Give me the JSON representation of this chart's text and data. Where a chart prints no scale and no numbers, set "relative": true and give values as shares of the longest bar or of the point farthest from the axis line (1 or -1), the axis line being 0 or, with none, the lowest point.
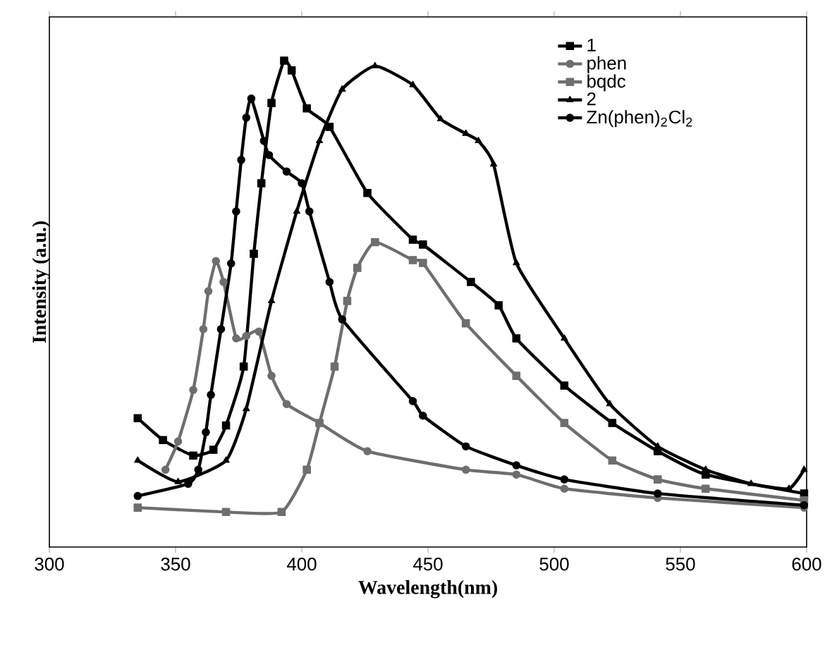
{
  "chart_data": {
    "type": "line",
    "xlabel": "Wavelength(nm)",
    "ylabel": "Intensity (a.u.)",
    "relative": true,
    "xlim": [
      300,
      600
    ],
    "xticks": [
      300,
      350,
      400,
      450,
      500,
      550,
      600
    ],
    "legend": "top right",
    "line_style": "solid",
    "series": [
      {
        "name": "1",
        "color": "#000000",
        "marker": "square",
        "x": [
          335,
          345,
          357,
          365,
          370,
          377,
          381,
          384,
          388,
          393,
          396,
          402,
          411,
          426,
          444,
          448,
          467,
          478,
          485,
          504,
          523,
          541,
          560,
          599
        ],
        "values": [
          0.265,
          0.22,
          0.188,
          0.2,
          0.25,
          0.371,
          0.603,
          0.748,
          0.913,
          1,
          0.98,
          0.902,
          0.864,
          0.728,
          0.632,
          0.622,
          0.545,
          0.497,
          0.429,
          0.332,
          0.255,
          0.197,
          0.149,
          0.11
        ]
      },
      {
        "name": "phen",
        "color": "#6e6e6e",
        "marker": "circle",
        "x": [
          346,
          351,
          357,
          361,
          363,
          366,
          369,
          374,
          378,
          383,
          388,
          394,
          407,
          426,
          465,
          485,
          504,
          541,
          599
        ],
        "values": [
          0.159,
          0.217,
          0.323,
          0.448,
          0.526,
          0.588,
          0.545,
          0.429,
          0.434,
          0.443,
          0.352,
          0.294,
          0.255,
          0.197,
          0.159,
          0.149,
          0.12,
          0.101,
          0.081
        ]
      },
      {
        "name": "bqdc",
        "color": "#6e6e6e",
        "marker": "square",
        "x": [
          335,
          370,
          392,
          402,
          407,
          413,
          418,
          422,
          429,
          444,
          448,
          465,
          485,
          504,
          523,
          541,
          560,
          599
        ],
        "values": [
          0.081,
          0.072,
          0.072,
          0.159,
          0.255,
          0.371,
          0.506,
          0.574,
          0.627,
          0.59,
          0.584,
          0.46,
          0.352,
          0.255,
          0.178,
          0.139,
          0.12,
          0.096
        ]
      },
      {
        "name": "2",
        "color": "#000000",
        "marker": "triangle",
        "x": [
          335,
          351,
          370,
          378,
          388,
          398,
          407,
          416,
          429,
          444,
          455,
          465,
          470,
          476,
          485,
          504,
          522,
          541,
          560,
          578,
          593,
          599
        ],
        "values": [
          0.178,
          0.134,
          0.178,
          0.284,
          0.506,
          0.69,
          0.835,
          0.941,
          0.989,
          0.95,
          0.88,
          0.85,
          0.835,
          0.787,
          0.584,
          0.429,
          0.294,
          0.207,
          0.159,
          0.13,
          0.12,
          0.159
        ]
      },
      {
        "name": "Zn(phen)$_{2}$Cl$_{2}$",
        "color": "#000000",
        "marker": "circle",
        "x": [
          335,
          355,
          359,
          362,
          364,
          368,
          372,
          374,
          376,
          378,
          380,
          385,
          387,
          394,
          400,
          403,
          411,
          416,
          444,
          448,
          465,
          485,
          504,
          541,
          599
        ],
        "values": [
          0.105,
          0.13,
          0.159,
          0.236,
          0.313,
          0.448,
          0.583,
          0.69,
          0.796,
          0.883,
          0.922,
          0.835,
          0.806,
          0.772,
          0.748,
          0.69,
          0.545,
          0.468,
          0.3,
          0.27,
          0.207,
          0.168,
          0.139,
          0.11,
          0.086
        ]
      }
    ]
  }
}
